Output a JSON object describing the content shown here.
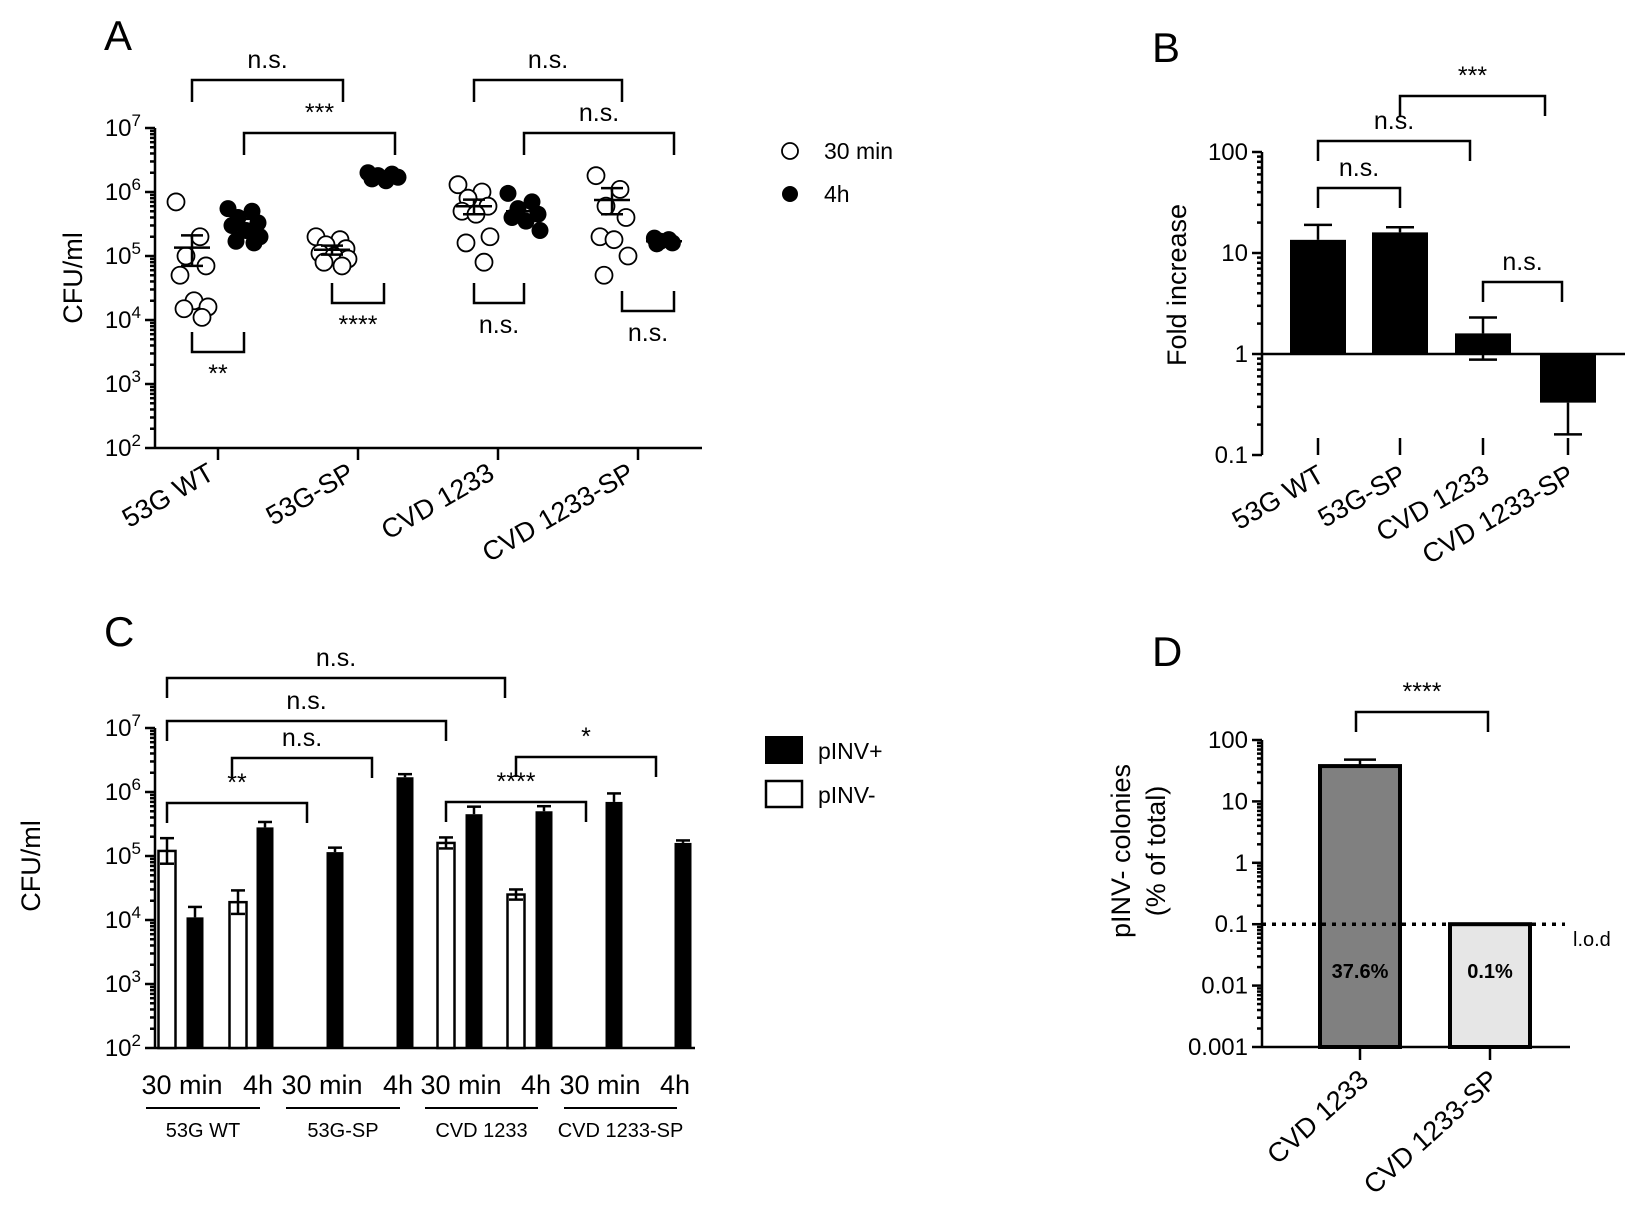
{
  "panels": {
    "A": {
      "letter": "A",
      "ylabel": "CFU/ml",
      "groups": [
        "53G WT",
        "53G-SP",
        "CVD 1233",
        "CVD 1233-SP"
      ],
      "legend": [
        {
          "label": "30 min",
          "marker": "open-circle"
        },
        {
          "label": "4h",
          "marker": "filled-circle"
        }
      ],
      "brackets": [
        {
          "label": "n.s.",
          "from": "53G WT 30 min",
          "to": "53G-SP 30 min"
        },
        {
          "label": "***",
          "from": "53G WT 4h",
          "to": "53G-SP 4h"
        },
        {
          "label": "n.s.",
          "from": "CVD 1233 30 min",
          "to": "CVD 1233-SP 30 min"
        },
        {
          "label": "n.s.",
          "from": "CVD 1233 4h",
          "to": "CVD 1233-SP 4h"
        },
        {
          "label": "**",
          "from": "53G WT 30 min",
          "to": "53G WT 4h"
        },
        {
          "label": "****",
          "from": "53G-SP 30 min",
          "to": "53G-SP 4h"
        },
        {
          "label": "n.s.",
          "from": "CVD 1233 30 min",
          "to": "CVD 1233 4h"
        },
        {
          "label": "n.s.",
          "from": "CVD 1233-SP 30 min",
          "to": "CVD 1233-SP 4h"
        }
      ]
    },
    "B": {
      "letter": "B",
      "ylabel": "Fold increase",
      "brackets": [
        {
          "label": "***",
          "from": "53G-SP",
          "to": "CVD 1233-SP"
        },
        {
          "label": "n.s.",
          "from": "53G WT",
          "to": "CVD 1233"
        },
        {
          "label": "n.s.",
          "from": "53G WT",
          "to": "53G-SP"
        },
        {
          "label": "n.s.",
          "from": "CVD 1233",
          "to": "CVD 1233-SP"
        }
      ]
    },
    "C": {
      "letter": "C",
      "ylabel": "CFU/ml",
      "timepoints": [
        "30 min",
        "4h"
      ],
      "groups": [
        "53G WT",
        "53G-SP",
        "CVD 1233",
        "CVD 1233-SP"
      ],
      "legend": [
        {
          "label": "pINV+",
          "fill": "#000000"
        },
        {
          "label": "pINV-",
          "fill": "#ffffff"
        }
      ],
      "brackets": [
        {
          "label": "n.s.",
          "from": "53G WT 30 min pINV-",
          "to": "CVD 1233 4h pINV+"
        },
        {
          "label": "n.s.",
          "from": "53G WT 30 min pINV-",
          "to": "CVD 1233 30 min pINV-"
        },
        {
          "label": "n.s.",
          "from": "53G WT 4h pINV-",
          "to": "53G-SP 4h"
        },
        {
          "label": "**",
          "from": "53G WT 30 min pINV-",
          "to": "53G-SP 30 min"
        },
        {
          "label": "****",
          "from": "CVD 1233 30 min pINV-",
          "to": "CVD 1233-SP 30 min"
        },
        {
          "label": "*",
          "from": "CVD 1233 4h pINV-",
          "to": "CVD 1233-SP 4h"
        }
      ]
    },
    "D": {
      "letter": "D",
      "ylabel_line1": "pINV- colonies",
      "ylabel_line2": "(% of total)",
      "lod_label": "l.o.d",
      "bracket": "****"
    }
  },
  "chart_data": [
    {
      "panel": "A",
      "type": "scatter",
      "title": "",
      "xlabel": "",
      "ylabel": "CFU/ml",
      "yscale": "log",
      "ylim": [
        100,
        10000000
      ],
      "yticks": [
        {
          "base": "10",
          "exp": "2"
        },
        {
          "base": "10",
          "exp": "3"
        },
        {
          "base": "10",
          "exp": "4"
        },
        {
          "base": "10",
          "exp": "5"
        },
        {
          "base": "10",
          "exp": "6"
        },
        {
          "base": "10",
          "exp": "7"
        }
      ],
      "categories": [
        "53G WT",
        "53G-SP",
        "CVD 1233",
        "CVD 1233-SP"
      ],
      "series": [
        {
          "name": "30 min",
          "points": [
            [
              700000.0,
              200000.0,
              100000.0,
              70000.0,
              50000.0,
              20000.0,
              16000.0,
              15000.0,
              11000.0
            ],
            [
              200000.0,
              180000.0,
              150000.0,
              130000.0,
              110000.0,
              100000.0,
              90000.0,
              80000.0,
              70000.0
            ],
            [
              1300000.0,
              1000000.0,
              800000.0,
              600000.0,
              500000.0,
              450000.0,
              200000.0,
              160000.0,
              80000.0
            ],
            [
              1800000.0,
              1100000.0,
              600000.0,
              400000.0,
              200000.0,
              180000.0,
              100000.0,
              50000.0
            ]
          ],
          "mean": [
            135000.0,
            125000.0,
            600000.0,
            750000.0
          ],
          "sem_low": [
            70000.0,
            105000.0,
            450000.0,
            450000.0
          ],
          "sem_high": [
            210000.0,
            145000.0,
            760000.0,
            1150000.0
          ]
        },
        {
          "name": "4h",
          "points": [
            [
              550000.0,
              500000.0,
              400000.0,
              330000.0,
              300000.0,
              250000.0,
              200000.0,
              170000.0,
              160000.0
            ],
            [
              2000000.0,
              1900000.0,
              1800000.0,
              1700000.0,
              1600000.0,
              1500000.0
            ],
            [
              950000.0,
              700000.0,
              550000.0,
              450000.0,
              400000.0,
              350000.0,
              250000.0
            ],
            [
              190000.0,
              180000.0,
              170000.0,
              160000.0,
              155000.0
            ]
          ],
          "mean": [
            300000.0,
            1750000.0,
            500000.0,
            170000.0
          ],
          "sem_low": [
            230000.0,
            1650000.0,
            390000.0,
            160000.0
          ],
          "sem_high": [
            380000.0,
            1850000.0,
            610000.0,
            180000.0
          ]
        }
      ]
    },
    {
      "panel": "B",
      "type": "bar",
      "title": "",
      "xlabel": "",
      "ylabel": "Fold increase",
      "yscale": "log",
      "ylim": [
        0.1,
        100
      ],
      "baseline": 1,
      "yticks": [
        "0.1",
        "1",
        "10",
        "100"
      ],
      "categories": [
        "53G WT",
        "53G-SP",
        "CVD 1233",
        "CVD 1233-SP"
      ],
      "values": [
        13.5,
        16,
        1.6,
        0.33
      ],
      "error_high": [
        19,
        18,
        2.3,
        0.33
      ],
      "error_low": [
        13.5,
        16,
        0.88,
        0.16
      ]
    },
    {
      "panel": "C",
      "type": "bar",
      "title": "",
      "xlabel": "",
      "ylabel": "CFU/ml",
      "yscale": "log",
      "ylim": [
        100,
        10000000
      ],
      "yticks": [
        {
          "base": "10",
          "exp": "2"
        },
        {
          "base": "10",
          "exp": "3"
        },
        {
          "base": "10",
          "exp": "4"
        },
        {
          "base": "10",
          "exp": "5"
        },
        {
          "base": "10",
          "exp": "6"
        },
        {
          "base": "10",
          "exp": "7"
        }
      ],
      "categories": [
        "53G WT 30 min",
        "53G WT 4h",
        "53G-SP 30 min",
        "53G-SP 4h",
        "CVD 1233 30 min",
        "CVD 1233 4h",
        "CVD 1233-SP 30 min",
        "CVD 1233-SP 4h"
      ],
      "series": [
        {
          "name": "pINV-",
          "values": [
            120000.0,
            19000.0,
            null,
            null,
            160000.0,
            25000.0,
            null,
            null
          ],
          "error": [
            190000.0,
            29000.0,
            null,
            null,
            195000.0,
            30000.0,
            null,
            null
          ]
        },
        {
          "name": "pINV+",
          "values": [
            11000.0,
            280000.0,
            115000.0,
            1700000.0,
            450000.0,
            500000.0,
            700000.0,
            160000.0
          ],
          "error": [
            16000.0,
            340000.0,
            135000.0,
            1900000.0,
            590000.0,
            600000.0,
            950000.0,
            175000.0
          ]
        }
      ]
    },
    {
      "panel": "D",
      "type": "bar",
      "title": "",
      "xlabel": "",
      "ylabel": "pINV- colonies (% of total)",
      "yscale": "log",
      "ylim": [
        0.001,
        100
      ],
      "yticks": [
        "0.001",
        "0.01",
        "0.1",
        "1",
        "10",
        "100"
      ],
      "categories": [
        "CVD 1233",
        "CVD 1233-SP"
      ],
      "values": [
        37.6,
        0.1
      ],
      "value_labels": [
        "37.6%",
        "0.1%"
      ],
      "error": [
        48,
        null
      ],
      "colors": [
        "#808080",
        "#e6e6e6"
      ],
      "limit_of_detection": 0.1
    }
  ]
}
